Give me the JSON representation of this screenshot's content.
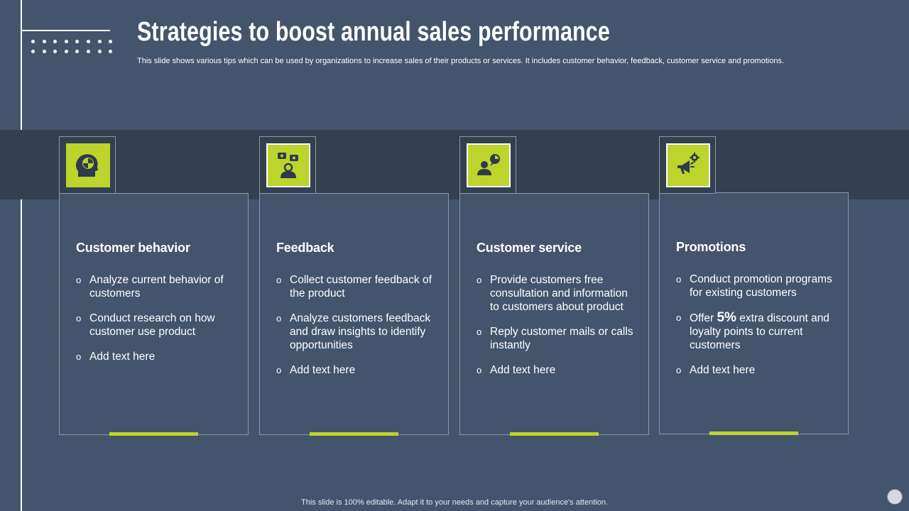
{
  "slide": {
    "title": "Strategies to boost annual sales performance",
    "subtitle": "This slide shows various tips which can be used by organizations to increase sales of their products or services. It includes customer behavior, feedback, customer service and promotions.",
    "footer": "This slide is 100% editable. Adapt it to your needs and capture your audience's attention."
  },
  "colors": {
    "background": "#44546c",
    "band": "#343f50",
    "accent": "#bcd42c",
    "border": "#8c97a8"
  },
  "cards": [
    {
      "icon": "head-pie-chart-icon",
      "title": "Customer behavior",
      "bullets": [
        "Analyze current behavior of customers",
        "Conduct research on how customer use product",
        "Add text here"
      ]
    },
    {
      "icon": "person-feedback-icon",
      "title": "Feedback",
      "bullets": [
        "Collect customer feedback of the product",
        "Analyze customers feedback and draw insights to identify opportunities",
        "Add text here"
      ]
    },
    {
      "icon": "customer-service-chat-icon",
      "title": "Customer service",
      "bullets": [
        "Provide customers free consultation and information to customers about product",
        "Reply customer mails or calls instantly",
        "Add text here"
      ]
    },
    {
      "icon": "megaphone-gear-icon",
      "title": "Promotions",
      "bullets": [
        "Conduct promotion programs for existing customers",
        "Add text here"
      ],
      "offer": {
        "prefix": "Offer",
        "highlight": "5%",
        "suffix": "extra discount and loyalty  points to current customers"
      }
    }
  ],
  "bullet_glyph": "o"
}
